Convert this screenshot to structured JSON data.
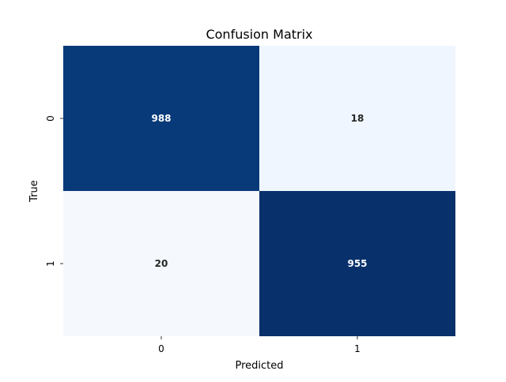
{
  "chart_data": {
    "type": "heatmap",
    "title": "Confusion Matrix",
    "xlabel": "Predicted",
    "ylabel": "True",
    "x_categories": [
      "0",
      "1"
    ],
    "y_categories": [
      "0",
      "1"
    ],
    "colormap": "Blues",
    "colorbar": false,
    "cells": [
      {
        "row": 0,
        "col": 0,
        "label": "988",
        "fill": "#083a7a",
        "text_color": "#ffffff"
      },
      {
        "row": 0,
        "col": 1,
        "label": "18",
        "fill": "#eff6ff",
        "text_color": "#262626"
      },
      {
        "row": 1,
        "col": 0,
        "label": "20",
        "fill": "#f5f9fe",
        "text_color": "#262626"
      },
      {
        "row": 1,
        "col": 1,
        "label": "955",
        "fill": "#08306b",
        "text_color": "#ffffff"
      }
    ]
  }
}
